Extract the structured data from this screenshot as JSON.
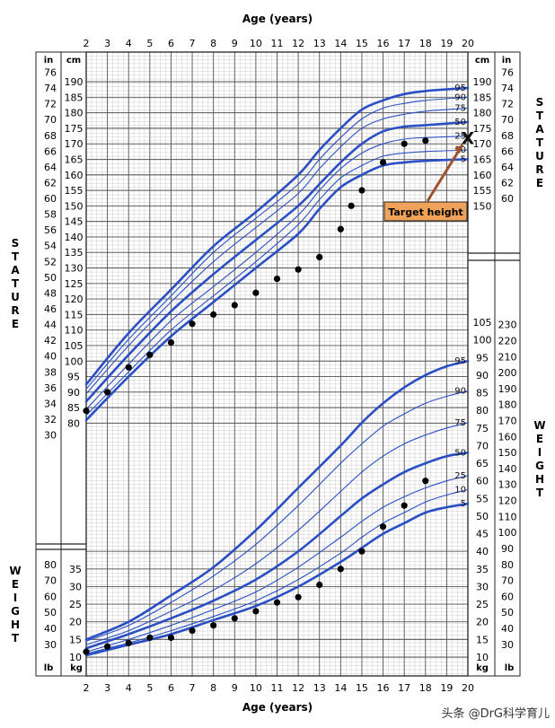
{
  "chart_data": {
    "type": "line",
    "title": "",
    "xlabel": "Age (years)",
    "xlim": [
      2,
      20
    ],
    "x_ticks": [
      2,
      3,
      4,
      5,
      6,
      7,
      8,
      9,
      10,
      11,
      12,
      13,
      14,
      15,
      16,
      17,
      18,
      19,
      20
    ],
    "stature": {
      "side_label": "STATURE",
      "cm_unit": "cm",
      "in_unit": "in",
      "ylim_cm": [
        79,
        193
      ],
      "cm_ticks_left": [
        80,
        85,
        90,
        95,
        100,
        105,
        110,
        115,
        120,
        125,
        130,
        135,
        140,
        145,
        150,
        155,
        160,
        165,
        170,
        175,
        180,
        185,
        190
      ],
      "cm_ticks_right": [
        150,
        155,
        160,
        165,
        170,
        175,
        180,
        185,
        190
      ],
      "in_ticks_left": [
        30,
        32,
        34,
        36,
        38,
        40,
        42,
        44,
        46,
        48,
        50,
        52,
        54,
        56,
        58,
        60,
        62,
        64,
        66,
        68,
        70,
        72,
        74,
        76
      ],
      "in_ticks_right": [
        60,
        62,
        64,
        66,
        68,
        70,
        72,
        74,
        76
      ],
      "series": [
        {
          "name": "5",
          "x": [
            2,
            4,
            6,
            8,
            10,
            12,
            13,
            14,
            15,
            16,
            17,
            18,
            20
          ],
          "y": [
            81,
            95,
            108,
            119,
            130,
            141,
            149,
            156,
            160,
            163,
            164,
            164.5,
            165
          ]
        },
        {
          "name": "10",
          "x": [
            2,
            4,
            6,
            8,
            10,
            12,
            13,
            14,
            15,
            16,
            17,
            18,
            20
          ],
          "y": [
            82.5,
            96.5,
            110,
            121,
            132,
            144,
            152,
            159,
            163,
            166,
            167,
            167.5,
            168
          ]
        },
        {
          "name": "25",
          "x": [
            2,
            4,
            6,
            8,
            10,
            12,
            13,
            14,
            15,
            16,
            17,
            18,
            20
          ],
          "y": [
            84.5,
            99,
            113,
            124,
            135,
            147,
            155,
            162,
            167,
            170,
            171.5,
            172,
            172.5
          ]
        },
        {
          "name": "50",
          "x": [
            2,
            4,
            6,
            8,
            10,
            12,
            13,
            14,
            15,
            16,
            17,
            18,
            20
          ],
          "y": [
            87,
            102,
            116,
            128,
            139,
            150,
            157,
            164,
            170,
            174,
            175.5,
            176,
            177
          ]
        },
        {
          "name": "75",
          "x": [
            2,
            4,
            6,
            8,
            10,
            12,
            13,
            14,
            15,
            16,
            17,
            18,
            20
          ],
          "y": [
            89.5,
            105,
            119,
            132,
            143,
            154,
            162,
            169,
            175,
            178,
            179.5,
            180.5,
            181.5
          ]
        },
        {
          "name": "90",
          "x": [
            2,
            4,
            6,
            8,
            10,
            12,
            13,
            14,
            15,
            16,
            17,
            18,
            20
          ],
          "y": [
            91,
            107,
            121,
            135,
            146,
            157,
            165,
            172,
            178,
            181.5,
            183,
            184,
            185
          ]
        },
        {
          "name": "95",
          "x": [
            2,
            4,
            6,
            8,
            10,
            12,
            13,
            14,
            15,
            16,
            17,
            18,
            20
          ],
          "y": [
            92.5,
            109,
            123,
            137,
            148,
            160,
            168,
            175,
            181,
            184,
            186,
            187,
            188
          ]
        }
      ],
      "bold_series": [
        "5",
        "50",
        "95"
      ],
      "measurements": {
        "x": [
          2,
          3,
          4,
          5,
          6,
          7,
          8,
          9,
          10,
          11,
          12,
          13,
          14,
          14.5,
          15,
          16,
          17,
          18
        ],
        "y": [
          84,
          90,
          98,
          102,
          106,
          112,
          115,
          118,
          122,
          126.5,
          129.5,
          133.5,
          142.5,
          150,
          155,
          164,
          170,
          171
        ]
      },
      "target": {
        "x": 20,
        "y": 172,
        "label": "Target height",
        "marker": "X"
      }
    },
    "weight": {
      "side_label": "WEIGHT",
      "kg_unit": "kg",
      "lb_unit": "lb",
      "ylim_kg": [
        8.5,
        110
      ],
      "kg_ticks_left": [
        10,
        15,
        20,
        25,
        30,
        35
      ],
      "kg_ticks_right": [
        10,
        15,
        20,
        25,
        30,
        35,
        40,
        45,
        50,
        55,
        60,
        65,
        70,
        75,
        80,
        85,
        90,
        95,
        100,
        105
      ],
      "lb_ticks_left": [
        30,
        40,
        50,
        60,
        70,
        80
      ],
      "lb_ticks_right": [
        30,
        40,
        50,
        60,
        70,
        80,
        90,
        100,
        110,
        120,
        130,
        140,
        150,
        160,
        170,
        180,
        190,
        200,
        210,
        220,
        230
      ],
      "series": [
        {
          "name": "5",
          "x": [
            2,
            4,
            6,
            8,
            10,
            12,
            14,
            15,
            16,
            17,
            18,
            19,
            20
          ],
          "y": [
            10.5,
            13.5,
            16.5,
            20.5,
            24.5,
            30,
            37,
            41,
            45,
            48,
            51,
            52.5,
            53.5
          ]
        },
        {
          "name": "10",
          "x": [
            2,
            4,
            6,
            8,
            10,
            12,
            14,
            15,
            16,
            17,
            18,
            19,
            20
          ],
          "y": [
            11,
            14,
            17.5,
            21.5,
            26,
            32,
            39.5,
            44,
            48,
            51,
            54,
            56,
            57.5
          ]
        },
        {
          "name": "25",
          "x": [
            2,
            4,
            6,
            8,
            10,
            12,
            14,
            15,
            16,
            17,
            18,
            19,
            20
          ],
          "y": [
            11.5,
            15,
            19,
            23.5,
            28.5,
            35.5,
            44,
            48.5,
            52.5,
            55.5,
            58,
            60,
            61.5
          ]
        },
        {
          "name": "50",
          "x": [
            2,
            4,
            6,
            8,
            10,
            12,
            14,
            15,
            16,
            17,
            18,
            19,
            20
          ],
          "y": [
            12.5,
            16.5,
            21,
            26,
            32,
            40,
            50,
            55,
            59,
            62.5,
            65,
            67,
            68
          ]
        },
        {
          "name": "75",
          "x": [
            2,
            4,
            6,
            8,
            10,
            12,
            14,
            15,
            16,
            17,
            18,
            19,
            20
          ],
          "y": [
            13.5,
            17.5,
            23,
            29,
            36.5,
            46,
            57,
            62.5,
            67,
            70.5,
            73,
            75,
            76.5
          ]
        },
        {
          "name": "90",
          "x": [
            2,
            4,
            6,
            8,
            10,
            12,
            14,
            15,
            16,
            17,
            18,
            19,
            20
          ],
          "y": [
            14.5,
            19,
            25.5,
            33,
            42,
            53,
            65,
            70.5,
            75.5,
            79,
            82,
            84,
            85.5
          ]
        },
        {
          "name": "95",
          "x": [
            2,
            4,
            6,
            8,
            10,
            12,
            14,
            15,
            16,
            17,
            18,
            19,
            20
          ],
          "y": [
            15,
            20,
            27.5,
            35.5,
            46,
            58,
            70,
            76.5,
            82,
            86.5,
            90,
            92.5,
            94
          ]
        }
      ],
      "bold_series": [
        "5",
        "50",
        "95"
      ],
      "measurements": {
        "x": [
          2,
          3,
          4,
          5,
          6,
          7,
          8,
          9,
          10,
          11,
          12,
          13,
          14,
          15,
          16,
          17,
          18
        ],
        "y": [
          11.5,
          13,
          14,
          15.5,
          15.5,
          17.5,
          19,
          21,
          23,
          25.5,
          27,
          30.5,
          35,
          40,
          47,
          53,
          60
        ]
      }
    }
  },
  "watermark": "头条 @DrG科学育儿",
  "colors": {
    "curve": "#2a4fc4",
    "grid_major": "#555555",
    "grid_minor": "#bfbfbf",
    "target_fill": "#f0a25a",
    "target_arrow": "#a0522d"
  }
}
